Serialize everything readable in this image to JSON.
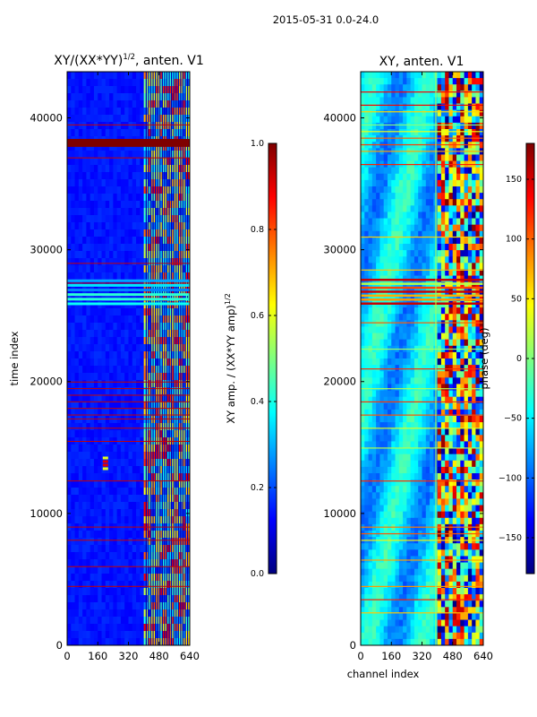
{
  "suptitle": "2015-05-31 0.0-24.0",
  "xlabel": "channel index",
  "colorscale": [
    "#00007f",
    "#0000ff",
    "#007fff",
    "#00ffff",
    "#7fff7f",
    "#ffff00",
    "#ff7f00",
    "#ff0000",
    "#7f0000"
  ],
  "chart_data": [
    {
      "type": "heatmap",
      "title": "XY/(XX*YY)^1/2, anten. V1",
      "title_main": "XY/(XX*YY)",
      "title_sup": "1/2",
      "title_tail": ", anten. V1",
      "ylabel": "time index",
      "x_ticks": [
        0,
        160,
        320,
        480,
        640
      ],
      "y_ticks": [
        0,
        10000,
        20000,
        30000,
        40000
      ],
      "xlim": [
        0,
        640
      ],
      "ylim": [
        0,
        43500
      ],
      "colorbar": {
        "label_main": "XY amp. / (XX*YY amp)",
        "label_sup": "1/2",
        "range": [
          0.0,
          1.0
        ],
        "ticks": [
          "0.0",
          "0.2",
          "0.4",
          "0.6",
          "0.8",
          "1.0"
        ],
        "tick_values": [
          0.0,
          0.2,
          0.4,
          0.6,
          0.8,
          1.0
        ]
      },
      "base_level": 0.12,
      "features": [
        {
          "desc": "high-amplitude band",
          "t0": 37800,
          "t1": 38400,
          "level": 1.0
        },
        {
          "desc": "noisy band",
          "t0": 26000,
          "t1": 27800,
          "level": 0.35
        },
        {
          "desc": "hot spot",
          "channel": 200,
          "t": 13800,
          "level": 0.9
        },
        {
          "desc": "active channels",
          "c0": 400,
          "c1": 640,
          "level": 0.5
        }
      ]
    },
    {
      "type": "heatmap",
      "title": "XY, anten. V1",
      "x_ticks": [
        0,
        160,
        320,
        480,
        640
      ],
      "y_ticks": [
        0,
        10000,
        20000,
        30000,
        40000
      ],
      "xlim": [
        0,
        640
      ],
      "ylim": [
        0,
        43500
      ],
      "colorbar": {
        "label": "phase (deg)",
        "range": [
          -180,
          180
        ],
        "ticks": [
          "−150",
          "−100",
          "−50",
          "0",
          "50",
          "100",
          "150"
        ],
        "tick_values": [
          -150,
          -100,
          -50,
          0,
          50,
          100,
          150
        ]
      },
      "base_level": -60,
      "features": [
        {
          "desc": "active channels",
          "c0": 390,
          "c1": 640,
          "level": 60
        },
        {
          "desc": "band",
          "t0": 26000,
          "t1": 28000,
          "level": 20
        }
      ]
    }
  ]
}
